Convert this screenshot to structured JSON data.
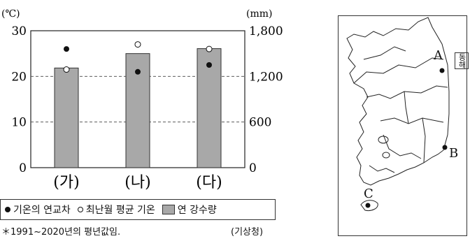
{
  "chart_data": {
    "type": "bar",
    "categories": [
      "(가)",
      "(나)",
      "(다)"
    ],
    "left_axis": {
      "unit_label": "(℃)",
      "ticks": [
        "0",
        "10",
        "20",
        "30"
      ],
      "range": [
        0,
        30
      ]
    },
    "right_axis": {
      "unit_label": "(mm)",
      "ticks": [
        "0",
        "600",
        "1,200",
        "1,800"
      ],
      "range": [
        0,
        1800
      ]
    },
    "bars": {
      "name": "연 강수량",
      "values": [
        1310,
        1500,
        1565
      ]
    },
    "filled_points": {
      "name": "기온의 연교차",
      "values": [
        26.0,
        21.0,
        22.5
      ]
    },
    "open_points": {
      "name": "최난월 평균 기온",
      "values": [
        21.5,
        27.0,
        26.0
      ]
    },
    "grid": "dashed at 10 and 20"
  },
  "legend": {
    "filled": "기온의 연교차",
    "open": "최난월 평균 기온",
    "bar": "연 강수량"
  },
  "footnote": "＊1991~2020년의 평년값임.",
  "source": "(기상청)",
  "map": {
    "labels": [
      "A",
      "B",
      "C"
    ],
    "side_label": "동해"
  }
}
